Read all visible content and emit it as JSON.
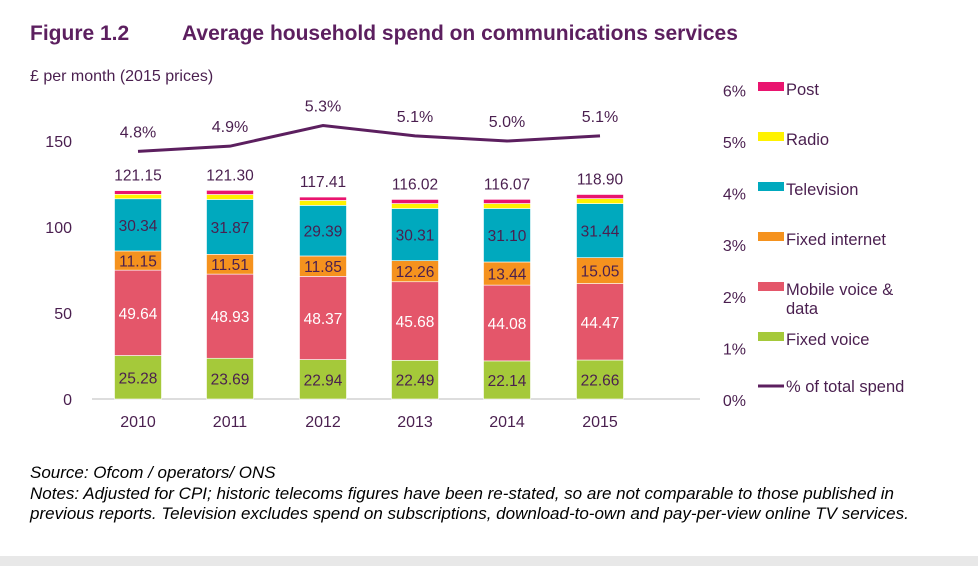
{
  "figure": {
    "number": "Figure 1.2",
    "title": "Average household spend on communications services"
  },
  "chart_data": {
    "type": "bar",
    "stacked": true,
    "title": "Average household spend on communications services",
    "ylabel": "£ per month (2015 prices)",
    "ylim": [
      0,
      150
    ],
    "yticks": [
      "0",
      "50",
      "100",
      "150"
    ],
    "y2lim": [
      0,
      6
    ],
    "y2ticks": [
      "0%",
      "1%",
      "2%",
      "3%",
      "4%",
      "5%",
      "6%"
    ],
    "categories": [
      "2010",
      "2011",
      "2012",
      "2013",
      "2014",
      "2015"
    ],
    "series": [
      {
        "name": "Fixed voice",
        "color": "#a5c93a",
        "values": [
          25.28,
          23.69,
          22.94,
          22.49,
          22.14,
          22.66
        ],
        "labels": [
          "25.28",
          "23.69",
          "22.94",
          "22.49",
          "22.14",
          "22.66"
        ]
      },
      {
        "name": "Mobile voice & data",
        "color": "#e4566a",
        "values": [
          49.64,
          48.93,
          48.37,
          45.68,
          44.08,
          44.47
        ],
        "labels": [
          "49.64",
          "48.93",
          "48.37",
          "45.68",
          "44.08",
          "44.47"
        ]
      },
      {
        "name": "Fixed internet",
        "color": "#f5921e",
        "values": [
          11.15,
          11.51,
          11.85,
          12.26,
          13.44,
          15.05
        ],
        "labels": [
          "11.15",
          "11.51",
          "11.85",
          "12.26",
          "13.44",
          "15.05"
        ]
      },
      {
        "name": "Television",
        "color": "#00a9be",
        "values": [
          30.34,
          31.87,
          29.39,
          30.31,
          31.1,
          31.44
        ],
        "labels": [
          "30.34",
          "31.87",
          "29.39",
          "30.31",
          "31.10",
          "31.44"
        ]
      },
      {
        "name": "Radio",
        "color": "#fff200",
        "values": [
          2.6,
          2.9,
          2.9,
          2.9,
          2.9,
          2.9
        ]
      },
      {
        "name": "Post",
        "color": "#e9146f",
        "values": [
          2.14,
          2.4,
          1.96,
          2.38,
          2.41,
          2.38
        ]
      }
    ],
    "totals": [
      "121.15",
      "121.30",
      "117.41",
      "116.02",
      "116.07",
      "118.90"
    ],
    "line": {
      "name": "% of total spend",
      "color": "#5c1f5f",
      "axis": "right",
      "values": [
        4.8,
        4.9,
        5.3,
        5.1,
        5.0,
        5.1
      ],
      "labels": [
        "4.8%",
        "4.9%",
        "5.3%",
        "5.1%",
        "5.0%",
        "5.1%"
      ]
    },
    "legend_position": "right",
    "legend": [
      "Post",
      "Radio",
      "Television",
      "Fixed internet",
      "Mobile voice &",
      "data",
      "Fixed voice",
      "% of total spend"
    ]
  },
  "source": "Source: Ofcom / operators/ ONS",
  "notes": "Notes: Adjusted for CPI; historic telecoms figures have been re-stated, so are not comparable to those published in previous reports. Television excludes spend on subscriptions, download-to-own and pay-per-view online TV services."
}
